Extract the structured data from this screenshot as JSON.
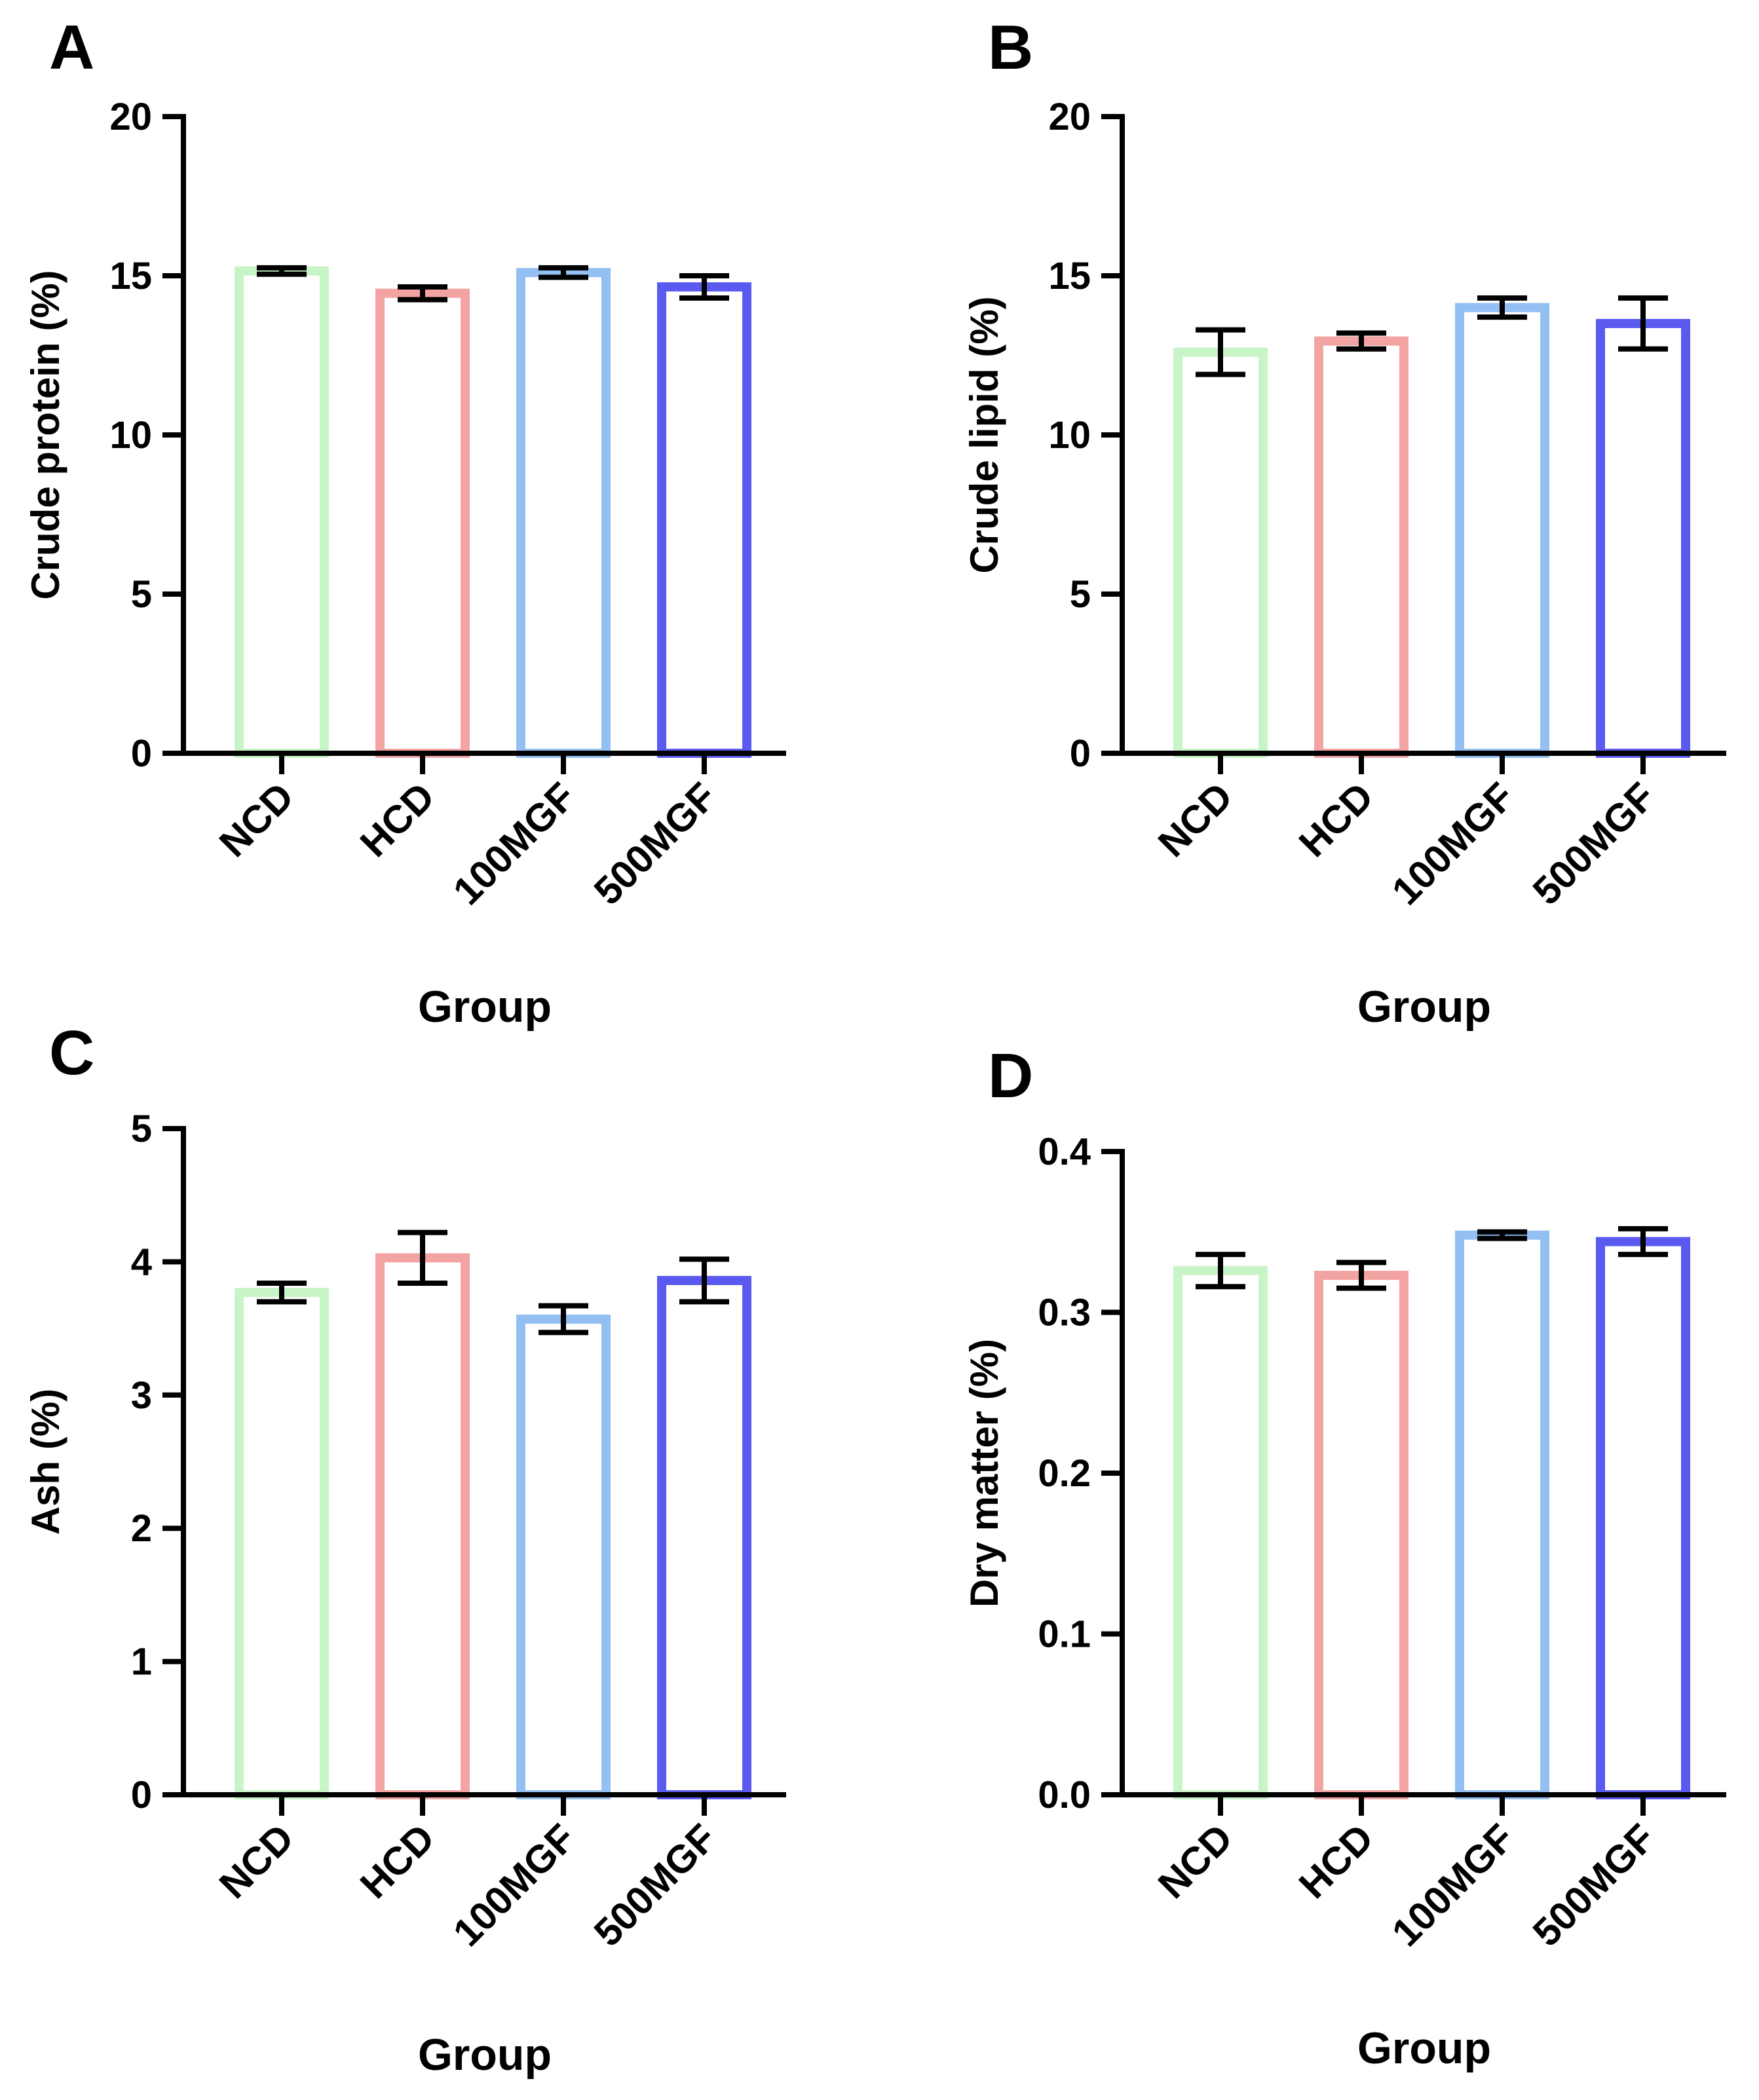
{
  "figure": {
    "panels": [
      "A",
      "B",
      "C",
      "D"
    ]
  },
  "chart_data": [
    {
      "panel": "A",
      "type": "bar",
      "categories": [
        "NCD",
        "HCD",
        "100MGF",
        "500MGF"
      ],
      "values": [
        15.15,
        14.45,
        15.1,
        14.65
      ],
      "errors": [
        0.1,
        0.2,
        0.15,
        0.35
      ],
      "title": "",
      "xlabel": "Group",
      "ylabel": "Crude protein (%)",
      "ylim": [
        0,
        20
      ],
      "yticks": [
        0,
        5,
        10,
        15,
        20
      ],
      "ytick_labels": [
        "0",
        "5",
        "10",
        "15",
        "20"
      ],
      "colors": [
        "#c8f5c8",
        "#f4a3a3",
        "#93bff2",
        "#5a5af0"
      ],
      "grid": false,
      "legend": "none"
    },
    {
      "panel": "B",
      "type": "bar",
      "categories": [
        "NCD",
        "HCD",
        "100MGF",
        "500MGF"
      ],
      "values": [
        12.6,
        12.95,
        14.0,
        13.5
      ],
      "errors": [
        0.7,
        0.25,
        0.3,
        0.8
      ],
      "title": "",
      "xlabel": "Group",
      "ylabel": "Crude lipid (%)",
      "ylim": [
        0,
        20
      ],
      "yticks": [
        0,
        5,
        10,
        15,
        20
      ],
      "ytick_labels": [
        "0",
        "5",
        "10",
        "15",
        "20"
      ],
      "colors": [
        "#c8f5c8",
        "#f4a3a3",
        "#93bff2",
        "#5a5af0"
      ],
      "grid": false,
      "legend": "none"
    },
    {
      "panel": "C",
      "type": "bar",
      "categories": [
        "NCD",
        "HCD",
        "100MGF",
        "500MGF"
      ],
      "values": [
        3.77,
        4.03,
        3.57,
        3.86
      ],
      "errors": [
        0.07,
        0.19,
        0.1,
        0.16
      ],
      "title": "",
      "xlabel": "Group",
      "ylabel": "Ash (%)",
      "ylim": [
        0,
        5
      ],
      "yticks": [
        0,
        1,
        2,
        3,
        4,
        5
      ],
      "ytick_labels": [
        "0",
        "1",
        "2",
        "3",
        "4",
        "5"
      ],
      "colors": [
        "#c8f5c8",
        "#f4a3a3",
        "#93bff2",
        "#5a5af0"
      ],
      "grid": false,
      "legend": "none"
    },
    {
      "panel": "D",
      "type": "bar",
      "categories": [
        "NCD",
        "HCD",
        "100MGF",
        "500MGF"
      ],
      "values": [
        0.326,
        0.323,
        0.348,
        0.344
      ],
      "errors": [
        0.01,
        0.008,
        0.002,
        0.008
      ],
      "title": "",
      "xlabel": "Group",
      "ylabel": "Dry matter (%)",
      "ylim": [
        0,
        0.4
      ],
      "yticks": [
        0,
        0.1,
        0.2,
        0.3,
        0.4
      ],
      "ytick_labels": [
        "0.0",
        "0.1",
        "0.2",
        "0.3",
        "0.4"
      ],
      "colors": [
        "#c8f5c8",
        "#f4a3a3",
        "#93bff2",
        "#5a5af0"
      ],
      "grid": false,
      "legend": "none"
    }
  ]
}
